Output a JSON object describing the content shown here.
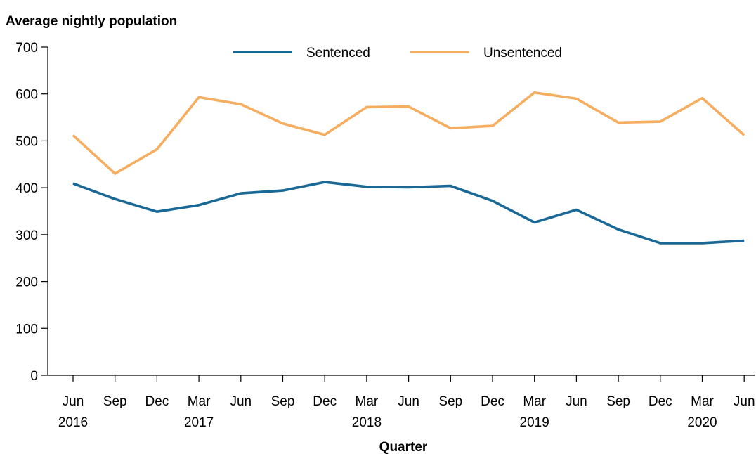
{
  "chart_data": {
    "type": "line",
    "ylabel": "Average nightly population",
    "xlabel": "Quarter",
    "ylim": [
      0,
      700
    ],
    "yticks": [
      0,
      100,
      200,
      300,
      400,
      500,
      600,
      700
    ],
    "categories": [
      {
        "q": "Jun",
        "year": "2016"
      },
      {
        "q": "Sep",
        "year": ""
      },
      {
        "q": "Dec",
        "year": ""
      },
      {
        "q": "Mar",
        "year": "2017"
      },
      {
        "q": "Jun",
        "year": ""
      },
      {
        "q": "Sep",
        "year": ""
      },
      {
        "q": "Dec",
        "year": ""
      },
      {
        "q": "Mar",
        "year": "2018"
      },
      {
        "q": "Jun",
        "year": ""
      },
      {
        "q": "Sep",
        "year": ""
      },
      {
        "q": "Dec",
        "year": ""
      },
      {
        "q": "Mar",
        "year": "2019"
      },
      {
        "q": "Jun",
        "year": ""
      },
      {
        "q": "Sep",
        "year": ""
      },
      {
        "q": "Dec",
        "year": ""
      },
      {
        "q": "Mar",
        "year": "2020"
      },
      {
        "q": "Jun",
        "year": ""
      }
    ],
    "series": [
      {
        "name": "Sentenced",
        "color": "#1a6896",
        "values": [
          409,
          376,
          349,
          363,
          388,
          394,
          412,
          402,
          401,
          404,
          372,
          326,
          353,
          311,
          282,
          282,
          287
        ]
      },
      {
        "name": "Unsentenced",
        "color": "#f5ad60",
        "values": [
          512,
          430,
          482,
          593,
          578,
          537,
          513,
          572,
          573,
          527,
          532,
          603,
          590,
          539,
          541,
          591,
          512
        ]
      }
    ],
    "legend_position": "top",
    "grid": false
  }
}
